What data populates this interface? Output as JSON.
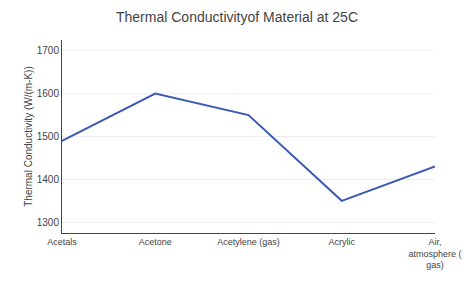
{
  "chart_data": {
    "type": "line",
    "title": "Thermal Conductivityof Material at 25C",
    "ylabel": "Thermal Conductivity (W/(m-K))",
    "categories": [
      "Acetals",
      "Acetone",
      "Acetylene (gas)",
      "Acrylic",
      "Air,\natmosphere (\ngas)"
    ],
    "values": [
      1490,
      1600,
      1550,
      1350,
      1430
    ],
    "color": "#3a5ab5",
    "ylim": [
      1275,
      1725
    ],
    "yticks": [
      1300,
      1400,
      1500,
      1600,
      1700
    ],
    "grid": true
  }
}
